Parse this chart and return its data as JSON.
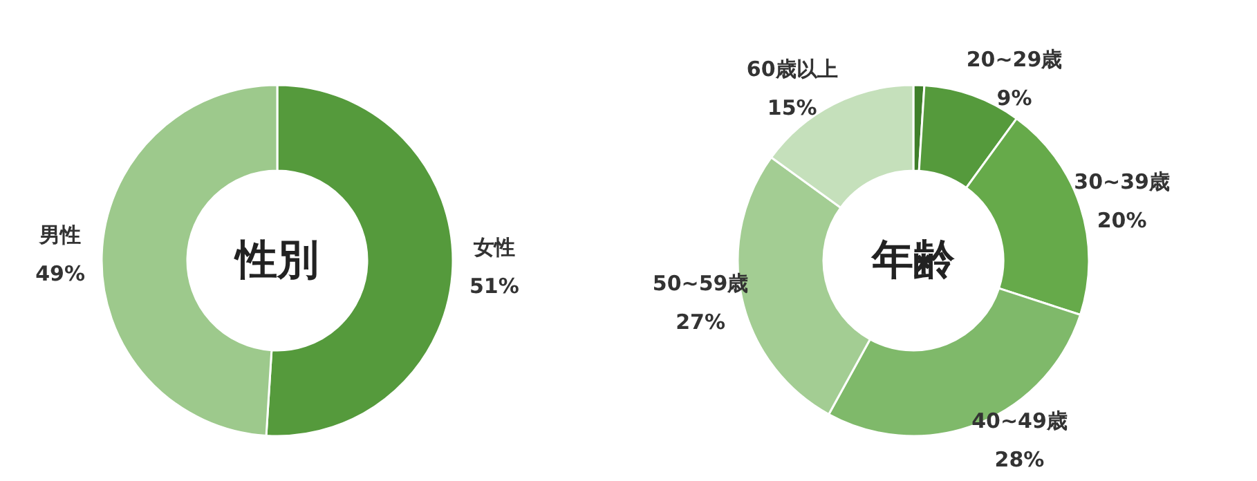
{
  "chart_data": [
    {
      "type": "donut",
      "title": "性別",
      "categories": [
        "女性",
        "男性"
      ],
      "values": [
        51,
        49
      ],
      "colors": [
        "#559a3c",
        "#9dc98c"
      ],
      "value_labels": [
        "51%",
        "49%"
      ]
    },
    {
      "type": "donut",
      "title": "年齢",
      "categories": [
        null,
        "20~29歳",
        "30~39歳",
        "40~49歳",
        "50~59歳",
        "60歳以上"
      ],
      "values": [
        1,
        9,
        20,
        28,
        27,
        15
      ],
      "colors": [
        "#3f7f2a",
        "#559a3c",
        "#66aa4a",
        "#7fb96a",
        "#a3cd93",
        "#c5e0bb"
      ],
      "value_labels": [
        null,
        "9%",
        "20%",
        "28%",
        "27%",
        "15%"
      ]
    }
  ]
}
